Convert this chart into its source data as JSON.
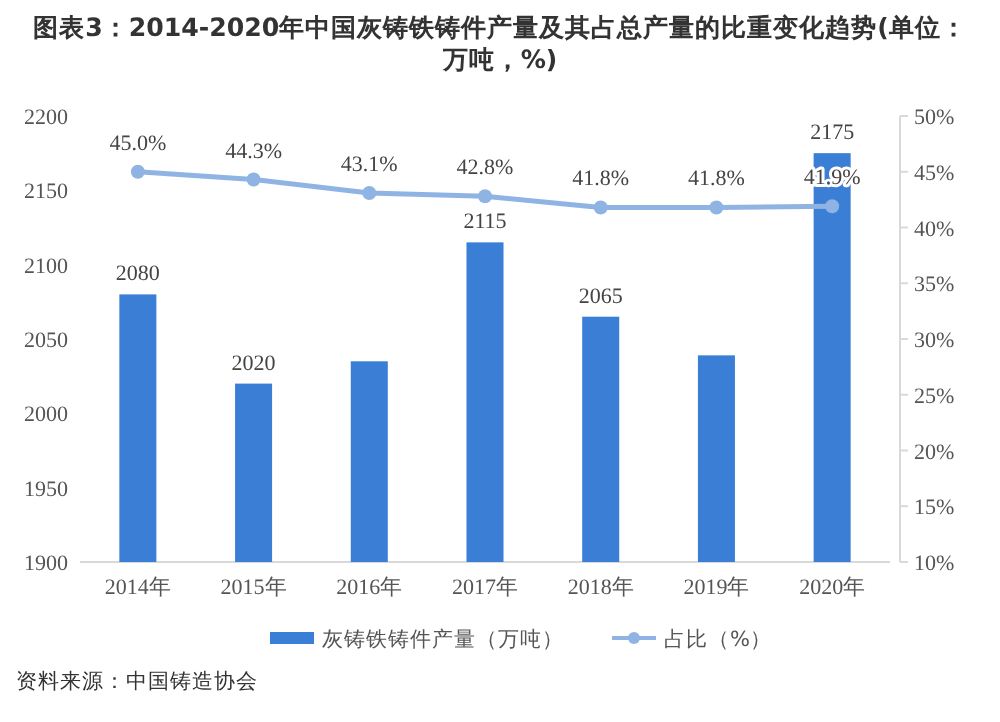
{
  "chart_data": {
    "type": "bar",
    "title": "图表3：2014-2020年中国灰铸铁铸件产量及其占总产量的比重变化趋势(单位：万吨，%)",
    "categories": [
      "2014年",
      "2015年",
      "2016年",
      "2017年",
      "2018年",
      "2019年",
      "2020年"
    ],
    "series": [
      {
        "name": "灰铸铁铸件产量（万吨）",
        "color": "#3a7fd5",
        "values": [
          2080,
          2020,
          2035,
          2115,
          2065,
          2039,
          2175
        ],
        "value_labels": [
          "2080",
          "2020",
          null,
          "2115",
          "2065",
          null,
          "2175"
        ]
      },
      {
        "name": "占比（%）",
        "type": "line",
        "axis": "y2",
        "color": "#8fb4e3",
        "marker": "circle",
        "values": [
          45.0,
          44.3,
          43.1,
          42.8,
          41.8,
          41.8,
          41.9
        ],
        "value_labels": [
          "45.0%",
          "44.3%",
          "43.1%",
          "42.8%",
          "41.8%",
          "41.8%",
          "41.9%"
        ]
      }
    ],
    "ylim": [
      1900,
      2200
    ],
    "yticks": [
      1900,
      1950,
      2000,
      2050,
      2100,
      2150,
      2200
    ],
    "y2lim": [
      10,
      50
    ],
    "y2ticks": [
      {
        "value": 10,
        "label": "10%"
      },
      {
        "value": 15,
        "label": "15%"
      },
      {
        "value": 20,
        "label": "20%"
      },
      {
        "value": 25,
        "label": "25%"
      },
      {
        "value": 30,
        "label": "30%"
      },
      {
        "value": 35,
        "label": "35%"
      },
      {
        "value": 40,
        "label": "40%"
      },
      {
        "value": 45,
        "label": "45%"
      },
      {
        "value": 50,
        "label": "50%"
      }
    ],
    "legend": "bottom",
    "annotations": [
      "资料来源：中国铸造协会"
    ]
  }
}
